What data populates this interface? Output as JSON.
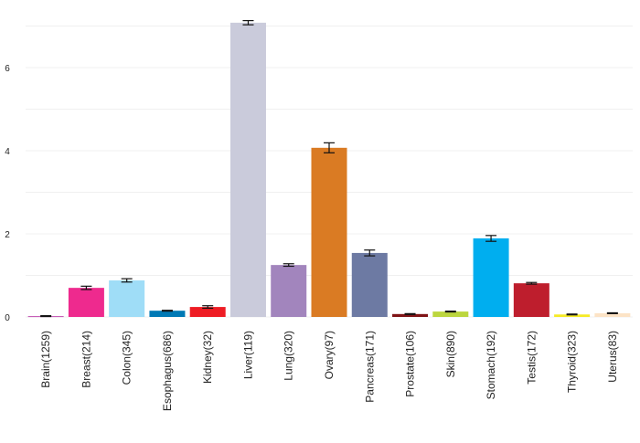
{
  "chart_data": {
    "type": "bar",
    "title": "",
    "xlabel": "",
    "ylabel": "",
    "ylim": [
      0,
      7.2
    ],
    "yticks": [
      0,
      2,
      4,
      6
    ],
    "grid": true,
    "categories": [
      "Brain(1259)",
      "Breast(214)",
      "Colon(345)",
      "Esophagus(686)",
      "Kidney(32)",
      "Liver(119)",
      "Lung(320)",
      "Ovary(97)",
      "Pancreas(171)",
      "Prostate(106)",
      "Skin(890)",
      "Stomach(192)",
      "Testis(172)",
      "Thyroid(323)",
      "Uterus(83)"
    ],
    "values": [
      0.02,
      0.7,
      0.88,
      0.15,
      0.24,
      7.08,
      1.25,
      4.07,
      1.54,
      0.07,
      0.13,
      1.89,
      0.81,
      0.06,
      0.09
    ],
    "errors": [
      0.01,
      0.04,
      0.04,
      0.01,
      0.03,
      0.05,
      0.03,
      0.12,
      0.07,
      0.01,
      0.01,
      0.07,
      0.02,
      0.01,
      0.01
    ],
    "colors": [
      "#c050b0",
      "#ee2a8e",
      "#9fddf7",
      "#0079b5",
      "#ee1c24",
      "#cacbdb",
      "#a285bd",
      "#da7b23",
      "#6d7aa3",
      "#7f1416",
      "#bcd63e",
      "#00aeef",
      "#be1e2d",
      "#f6eb25",
      "#fce3c6"
    ]
  }
}
